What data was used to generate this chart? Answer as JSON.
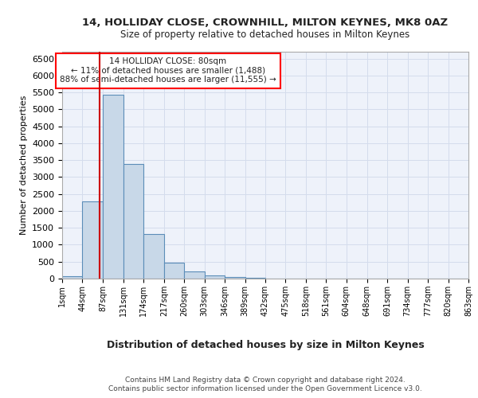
{
  "title1": "14, HOLLIDAY CLOSE, CROWNHILL, MILTON KEYNES, MK8 0AZ",
  "title2": "Size of property relative to detached houses in Milton Keynes",
  "xlabel": "Distribution of detached houses by size in Milton Keynes",
  "ylabel": "Number of detached properties",
  "footer1": "Contains HM Land Registry data © Crown copyright and database right 2024.",
  "footer2": "Contains public sector information licensed under the Open Government Licence v3.0.",
  "annotation_line1": "14 HOLLIDAY CLOSE: 80sqm",
  "annotation_line2": "← 11% of detached houses are smaller (1,488)",
  "annotation_line3": "88% of semi-detached houses are larger (11,555) →",
  "bar_color": "#c8d8e8",
  "bar_edge_color": "#5b8db8",
  "vline_color": "#cc0000",
  "vline_x": 80,
  "bin_edges": [
    1,
    44,
    87,
    131,
    174,
    217,
    260,
    303,
    346,
    389,
    432,
    475,
    518,
    561,
    604,
    648,
    691,
    734,
    777,
    820,
    863
  ],
  "bar_heights": [
    70,
    2290,
    5420,
    3380,
    1310,
    480,
    200,
    90,
    55,
    30,
    10,
    5,
    3,
    2,
    1,
    1,
    1,
    0,
    0,
    0
  ],
  "ylim": [
    0,
    6700
  ],
  "yticks": [
    0,
    500,
    1000,
    1500,
    2000,
    2500,
    3000,
    3500,
    4000,
    4500,
    5000,
    5500,
    6000,
    6500
  ],
  "xtick_labels": [
    "1sqm",
    "44sqm",
    "87sqm",
    "131sqm",
    "174sqm",
    "217sqm",
    "260sqm",
    "303sqm",
    "346sqm",
    "389sqm",
    "432sqm",
    "475sqm",
    "518sqm",
    "561sqm",
    "604sqm",
    "648sqm",
    "691sqm",
    "734sqm",
    "777sqm",
    "820sqm",
    "863sqm"
  ],
  "grid_color": "#d4dcec",
  "background_color": "#eef2fa",
  "title1_fontsize": 9.5,
  "title2_fontsize": 8.5,
  "ylabel_fontsize": 8,
  "xlabel_fontsize": 9,
  "ytick_fontsize": 8,
  "xtick_fontsize": 7,
  "footer_fontsize": 6.5
}
